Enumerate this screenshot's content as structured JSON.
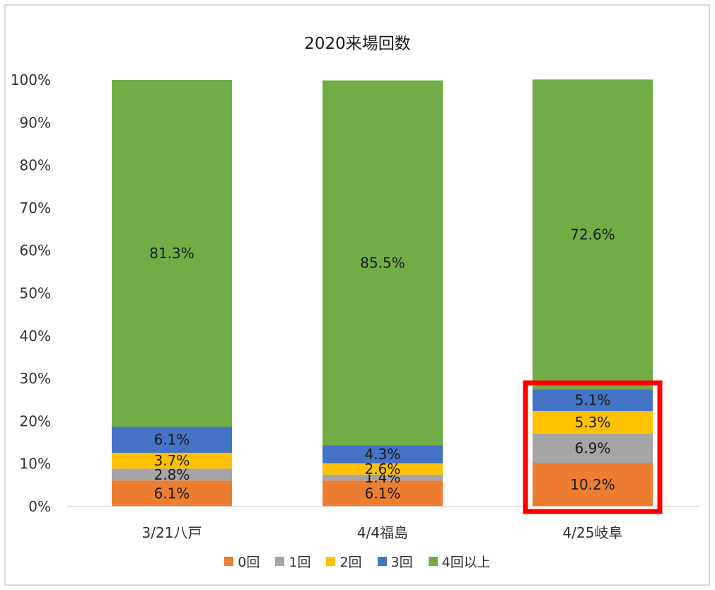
{
  "chart_data": {
    "type": "bar",
    "stacked": true,
    "title": "2020来場回数",
    "categories": [
      "3/21八戸",
      "4/4福島",
      "4/25岐阜"
    ],
    "series": [
      {
        "name": "0回",
        "color": "#ed7d31",
        "values": [
          6.1,
          6.1,
          10.2
        ]
      },
      {
        "name": "1回",
        "color": "#a5a5a5",
        "values": [
          2.8,
          1.4,
          6.9
        ]
      },
      {
        "name": "2回",
        "color": "#ffc000",
        "values": [
          3.7,
          2.6,
          5.3
        ]
      },
      {
        "name": "3回",
        "color": "#4472c4",
        "values": [
          6.1,
          4.3,
          5.1
        ]
      },
      {
        "name": "4回以上",
        "color": "#70ad47",
        "values": [
          81.3,
          85.5,
          72.6
        ]
      }
    ],
    "ylim": [
      0,
      100
    ],
    "yticks": [
      "0%",
      "10%",
      "20%",
      "30%",
      "40%",
      "50%",
      "60%",
      "70%",
      "80%",
      "90%",
      "100%"
    ],
    "grid": false,
    "legend": "bottom",
    "highlight": {
      "category": "4/25岐阜",
      "series": [
        "0回",
        "1回",
        "2回",
        "3回"
      ],
      "color": "#ff0000"
    }
  }
}
